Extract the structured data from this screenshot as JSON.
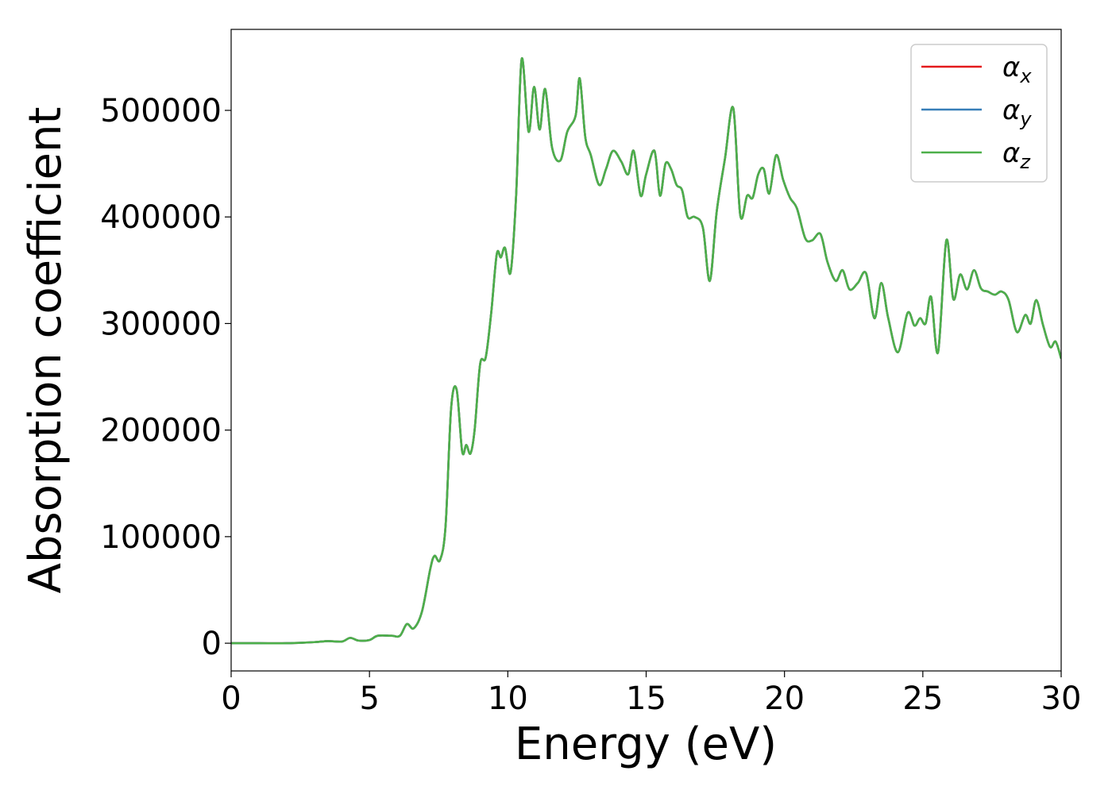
{
  "chart_data": {
    "type": "line",
    "title": "",
    "xlabel": "Energy (eV)",
    "ylabel": "Absorption coefficient",
    "xlim": [
      0,
      30
    ],
    "ylim": [
      -26000,
      576000
    ],
    "xticks": [
      0,
      5,
      10,
      15,
      20,
      25,
      30
    ],
    "xtick_labels": [
      "0",
      "5",
      "10",
      "15",
      "20",
      "25",
      "30"
    ],
    "yticks": [
      0,
      100000,
      200000,
      300000,
      400000,
      500000
    ],
    "ytick_labels": [
      "0",
      "100000",
      "200000",
      "300000",
      "400000",
      "500000"
    ],
    "grid": false,
    "legend_position": "top-right",
    "colors": {
      "alpha_x": "#e41a1c",
      "alpha_y": "#377eb8",
      "alpha_z": "#4daf4a"
    },
    "x": [
      0,
      1,
      2,
      3,
      3.5,
      4,
      4.3,
      4.6,
      5.0,
      5.3,
      5.8,
      6.1,
      6.35,
      6.6,
      6.9,
      7.2,
      7.35,
      7.55,
      7.75,
      7.95,
      8.15,
      8.35,
      8.5,
      8.65,
      8.8,
      9.0,
      9.2,
      9.4,
      9.6,
      9.75,
      9.9,
      10.1,
      10.3,
      10.5,
      10.75,
      10.95,
      11.15,
      11.35,
      11.6,
      11.9,
      12.15,
      12.45,
      12.6,
      12.8,
      13.0,
      13.3,
      13.55,
      13.8,
      14.1,
      14.35,
      14.55,
      14.8,
      15.0,
      15.3,
      15.5,
      15.7,
      15.9,
      16.1,
      16.3,
      16.5,
      16.75,
      17.05,
      17.3,
      17.55,
      17.85,
      18.15,
      18.4,
      18.65,
      18.85,
      19.05,
      19.25,
      19.45,
      19.7,
      19.95,
      20.2,
      20.45,
      20.75,
      21.0,
      21.3,
      21.55,
      21.85,
      22.1,
      22.35,
      22.65,
      22.95,
      23.25,
      23.5,
      23.75,
      24.1,
      24.45,
      24.7,
      24.9,
      25.1,
      25.3,
      25.55,
      25.85,
      26.1,
      26.35,
      26.6,
      26.85,
      27.1,
      27.35,
      27.6,
      27.85,
      28.1,
      28.4,
      28.7,
      28.9,
      29.1,
      29.35,
      29.6,
      29.8,
      30.0
    ],
    "series": [
      {
        "name": "α_x",
        "values": [
          0,
          0,
          0,
          1000,
          2000,
          1500,
          5000,
          2500,
          3000,
          7000,
          7000,
          7000,
          18000,
          14000,
          30000,
          70000,
          82000,
          78000,
          110000,
          220000,
          238000,
          180000,
          186000,
          178000,
          200000,
          262000,
          268000,
          310000,
          365000,
          362000,
          371000,
          348000,
          420000,
          548000,
          480000,
          522000,
          482000,
          520000,
          465000,
          453000,
          480000,
          495000,
          530000,
          475000,
          458000,
          430000,
          445000,
          462000,
          452000,
          440000,
          462000,
          420000,
          440000,
          462000,
          420000,
          450000,
          445000,
          430000,
          425000,
          400000,
          400000,
          390000,
          340000,
          405000,
          455000,
          502000,
          402000,
          420000,
          418000,
          440000,
          445000,
          422000,
          458000,
          435000,
          418000,
          408000,
          380000,
          378000,
          384000,
          358000,
          340000,
          350000,
          332000,
          338000,
          347000,
          305000,
          338000,
          305000,
          273000,
          310000,
          298000,
          305000,
          300000,
          325000,
          273000,
          378000,
          323000,
          346000,
          332000,
          350000,
          333000,
          330000,
          327000,
          330000,
          322000,
          292000,
          308000,
          300000,
          322000,
          298000,
          278000,
          283000,
          267000
        ]
      },
      {
        "name": "α_y",
        "values": [
          0,
          0,
          0,
          1000,
          2000,
          1500,
          5000,
          2500,
          3000,
          7000,
          7000,
          7000,
          18000,
          14000,
          30000,
          70000,
          82000,
          78000,
          110000,
          220000,
          238000,
          180000,
          186000,
          178000,
          200000,
          262000,
          268000,
          310000,
          365000,
          362000,
          371000,
          348000,
          420000,
          548000,
          480000,
          522000,
          482000,
          520000,
          465000,
          453000,
          480000,
          495000,
          530000,
          475000,
          458000,
          430000,
          445000,
          462000,
          452000,
          440000,
          462000,
          420000,
          440000,
          462000,
          420000,
          450000,
          445000,
          430000,
          425000,
          400000,
          400000,
          390000,
          340000,
          405000,
          455000,
          502000,
          402000,
          420000,
          418000,
          440000,
          445000,
          422000,
          458000,
          435000,
          418000,
          408000,
          380000,
          378000,
          384000,
          358000,
          340000,
          350000,
          332000,
          338000,
          347000,
          305000,
          338000,
          305000,
          273000,
          310000,
          298000,
          305000,
          300000,
          325000,
          273000,
          378000,
          323000,
          346000,
          332000,
          350000,
          333000,
          330000,
          327000,
          330000,
          322000,
          292000,
          308000,
          300000,
          322000,
          298000,
          278000,
          283000,
          267000
        ]
      },
      {
        "name": "α_z",
        "values": [
          0,
          0,
          0,
          1000,
          2000,
          1500,
          5000,
          2500,
          3000,
          7000,
          7000,
          7000,
          18000,
          14000,
          30000,
          70000,
          82000,
          78000,
          110000,
          220000,
          238000,
          180000,
          186000,
          178000,
          200000,
          262000,
          268000,
          310000,
          365000,
          362000,
          371000,
          348000,
          420000,
          548000,
          480000,
          522000,
          482000,
          520000,
          465000,
          453000,
          480000,
          495000,
          530000,
          475000,
          458000,
          430000,
          445000,
          462000,
          452000,
          440000,
          462000,
          420000,
          440000,
          462000,
          420000,
          450000,
          445000,
          430000,
          425000,
          400000,
          400000,
          390000,
          340000,
          405000,
          455000,
          502000,
          402000,
          420000,
          418000,
          440000,
          445000,
          422000,
          458000,
          435000,
          418000,
          408000,
          380000,
          378000,
          384000,
          358000,
          340000,
          350000,
          332000,
          338000,
          347000,
          305000,
          338000,
          305000,
          273000,
          310000,
          298000,
          305000,
          300000,
          325000,
          273000,
          378000,
          323000,
          346000,
          332000,
          350000,
          333000,
          330000,
          327000,
          330000,
          322000,
          292000,
          308000,
          300000,
          322000,
          298000,
          278000,
          283000,
          267000
        ]
      }
    ],
    "legend": [
      {
        "symbol": "α",
        "sub": "x",
        "color": "#e41a1c"
      },
      {
        "symbol": "α",
        "sub": "y",
        "color": "#377eb8"
      },
      {
        "symbol": "α",
        "sub": "z",
        "color": "#4daf4a"
      }
    ]
  }
}
